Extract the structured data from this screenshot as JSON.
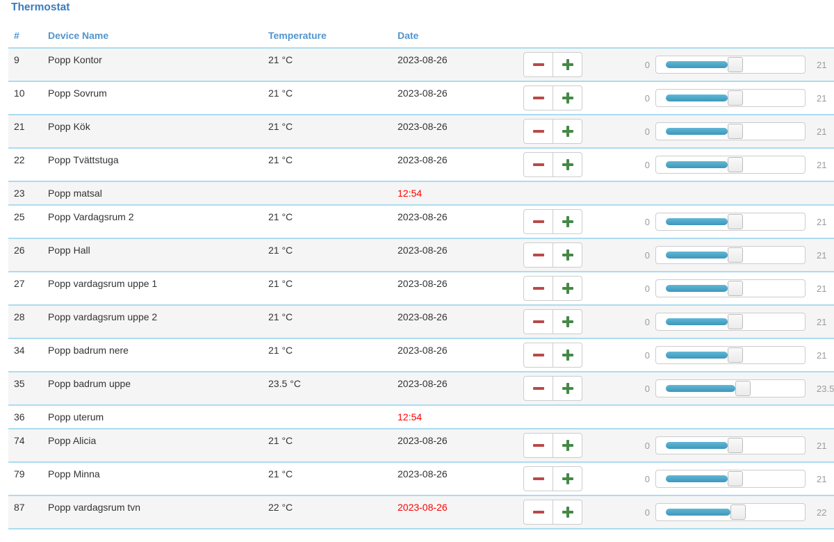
{
  "page": {
    "title": "Thermostat"
  },
  "colors": {
    "title_blue": "#3a7bbf",
    "header_blue": "#5295ce",
    "row_divider_blue": "#aadcf0",
    "slider_track_blue": "#49a5c5",
    "minus_red": "#b94a48",
    "plus_green": "#468847",
    "alert_red": "#ff0000",
    "stripe_gray": "#f5f5f5",
    "muted_gray": "#9b9b9b"
  },
  "icons": {
    "decrease": "minus-icon",
    "increase": "plus-icon"
  },
  "slider": {
    "min": 0,
    "max": 40,
    "min_label": "0"
  },
  "table": {
    "headers": [
      {
        "label": "#"
      },
      {
        "label": "Device Name"
      },
      {
        "label": "Temperature"
      },
      {
        "label": "Date"
      }
    ],
    "rows": [
      {
        "number": "9",
        "device_name": "Popp Kontor",
        "temperature": "21 °C",
        "date": "2023-08-26",
        "date_alert": false,
        "has_controls": true,
        "setpoint": 21,
        "setpoint_label": "21"
      },
      {
        "number": "10",
        "device_name": "Popp Sovrum",
        "temperature": "21 °C",
        "date": "2023-08-26",
        "date_alert": false,
        "has_controls": true,
        "setpoint": 21,
        "setpoint_label": "21"
      },
      {
        "number": "21",
        "device_name": "Popp Kök",
        "temperature": "21 °C",
        "date": "2023-08-26",
        "date_alert": false,
        "has_controls": true,
        "setpoint": 21,
        "setpoint_label": "21"
      },
      {
        "number": "22",
        "device_name": "Popp Tvättstuga",
        "temperature": "21 °C",
        "date": "2023-08-26",
        "date_alert": false,
        "has_controls": true,
        "setpoint": 21,
        "setpoint_label": "21"
      },
      {
        "number": "23",
        "device_name": "Popp matsal",
        "temperature": "",
        "date": "12:54",
        "date_alert": true,
        "has_controls": false,
        "setpoint": null,
        "setpoint_label": ""
      },
      {
        "number": "25",
        "device_name": "Popp Vardagsrum 2",
        "temperature": "21 °C",
        "date": "2023-08-26",
        "date_alert": false,
        "has_controls": true,
        "setpoint": 21,
        "setpoint_label": "21"
      },
      {
        "number": "26",
        "device_name": "Popp Hall",
        "temperature": "21 °C",
        "date": "2023-08-26",
        "date_alert": false,
        "has_controls": true,
        "setpoint": 21,
        "setpoint_label": "21"
      },
      {
        "number": "27",
        "device_name": "Popp vardagsrum uppe 1",
        "temperature": "21 °C",
        "date": "2023-08-26",
        "date_alert": false,
        "has_controls": true,
        "setpoint": 21,
        "setpoint_label": "21"
      },
      {
        "number": "28",
        "device_name": "Popp vardagsrum uppe 2",
        "temperature": "21 °C",
        "date": "2023-08-26",
        "date_alert": false,
        "has_controls": true,
        "setpoint": 21,
        "setpoint_label": "21"
      },
      {
        "number": "34",
        "device_name": "Popp badrum nere",
        "temperature": "21 °C",
        "date": "2023-08-26",
        "date_alert": false,
        "has_controls": true,
        "setpoint": 21,
        "setpoint_label": "21"
      },
      {
        "number": "35",
        "device_name": "Popp badrum uppe",
        "temperature": "23.5 °C",
        "date": "2023-08-26",
        "date_alert": false,
        "has_controls": true,
        "setpoint": 23.5,
        "setpoint_label": "23.5"
      },
      {
        "number": "36",
        "device_name": "Popp uterum",
        "temperature": "",
        "date": "12:54",
        "date_alert": true,
        "has_controls": false,
        "setpoint": null,
        "setpoint_label": ""
      },
      {
        "number": "74",
        "device_name": "Popp Alicia",
        "temperature": "21 °C",
        "date": "2023-08-26",
        "date_alert": false,
        "has_controls": true,
        "setpoint": 21,
        "setpoint_label": "21"
      },
      {
        "number": "79",
        "device_name": "Popp Minna",
        "temperature": "21 °C",
        "date": "2023-08-26",
        "date_alert": false,
        "has_controls": true,
        "setpoint": 21,
        "setpoint_label": "21"
      },
      {
        "number": "87",
        "device_name": "Popp vardagsrum tvn",
        "temperature": "22 °C",
        "date": "2023-08-26",
        "date_alert": true,
        "has_controls": true,
        "setpoint": 22,
        "setpoint_label": "22"
      }
    ]
  }
}
